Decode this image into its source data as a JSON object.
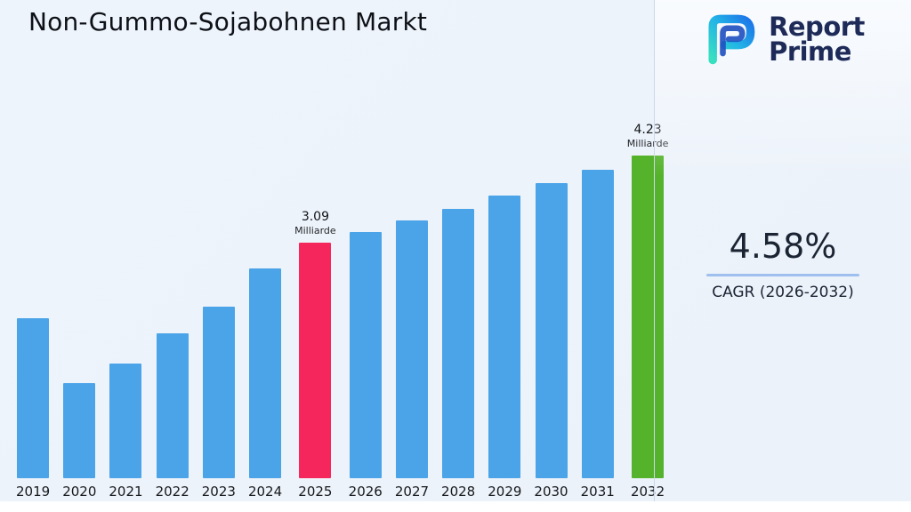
{
  "title": "Non-Gummo-Sojabohnen Markt",
  "brand": {
    "name_line1": "Report",
    "name_line2": "Prime"
  },
  "cagr": {
    "value": "4.58%",
    "label": "CAGR (2026-2032)"
  },
  "colors": {
    "background": "#edf3fb",
    "bar_default": "#4ba3e8",
    "bar_highlight_2025": "#f5265c",
    "bar_highlight_2032": "#55b32b",
    "brand_navy": "#1e2b58",
    "cagr_underline": "#9fc0ee",
    "divider": "#cdd8e6"
  },
  "chart_data": {
    "type": "bar",
    "title": "Non-Gummo-Sojabohnen Markt",
    "unit": "Milliarde",
    "categories": [
      "2019",
      "2020",
      "2021",
      "2022",
      "2023",
      "2024",
      "2025",
      "2026",
      "2027",
      "2028",
      "2029",
      "2030",
      "2031",
      "2032"
    ],
    "values": [
      2.1,
      1.25,
      1.5,
      1.9,
      2.25,
      2.75,
      3.09,
      3.23,
      3.38,
      3.53,
      3.7,
      3.87,
      4.04,
      4.23
    ],
    "ylim": [
      0,
      4.4
    ],
    "grid": false,
    "legend": false,
    "bar_color_default": "#4ba3e8",
    "highlights": {
      "2025": {
        "color": "#f5265c",
        "label_value": "3.09",
        "label_unit": "Milliarde"
      },
      "2032": {
        "color": "#55b32b",
        "label_value": "4.23",
        "label_unit": "Milliarde"
      }
    }
  }
}
